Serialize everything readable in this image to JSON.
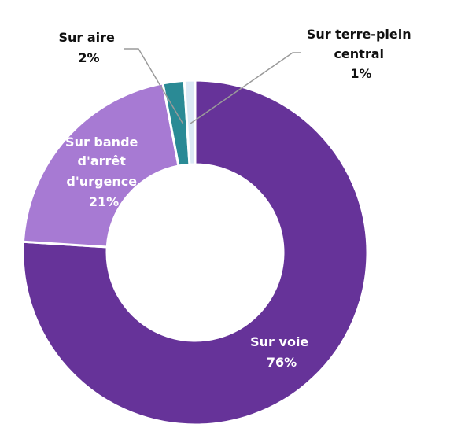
{
  "chart_data": {
    "type": "donut",
    "legend": "none",
    "categories": [
      "Sur voie",
      "Sur bande d'arrêt d'urgence",
      "Sur aire",
      "Sur terre-plein central"
    ],
    "values": [
      76,
      21,
      2,
      1
    ],
    "value_labels": [
      "76%",
      "21%",
      "2%",
      "1%"
    ],
    "colors": [
      "#663399",
      "#a77ad3",
      "#2a8a95",
      "#dbe9f5"
    ],
    "labels": {
      "voie": {
        "line1": "Sur voie",
        "pct": "76%"
      },
      "bau": {
        "line1": "Sur bande",
        "line2": "d'arrêt",
        "line3": "d'urgence",
        "pct": "21%"
      },
      "aire": {
        "line1": "Sur aire",
        "pct": "2%"
      },
      "tpc": {
        "line1": "Sur terre-plein",
        "line2": "central",
        "pct": "1%"
      }
    }
  }
}
